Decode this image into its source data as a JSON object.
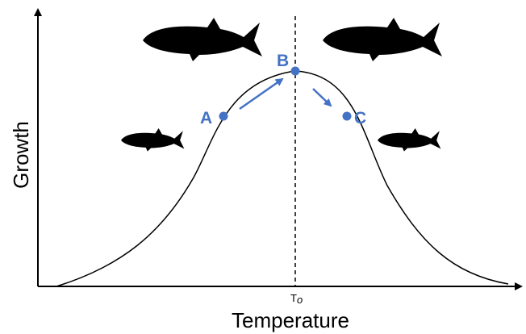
{
  "diagram": {
    "y_axis_label": "Growth",
    "x_axis_label": "Temperature",
    "optimum_label": {
      "main": "T",
      "sub": "o"
    },
    "points": [
      {
        "label": "A"
      },
      {
        "label": "B"
      },
      {
        "label": "C"
      }
    ]
  }
}
